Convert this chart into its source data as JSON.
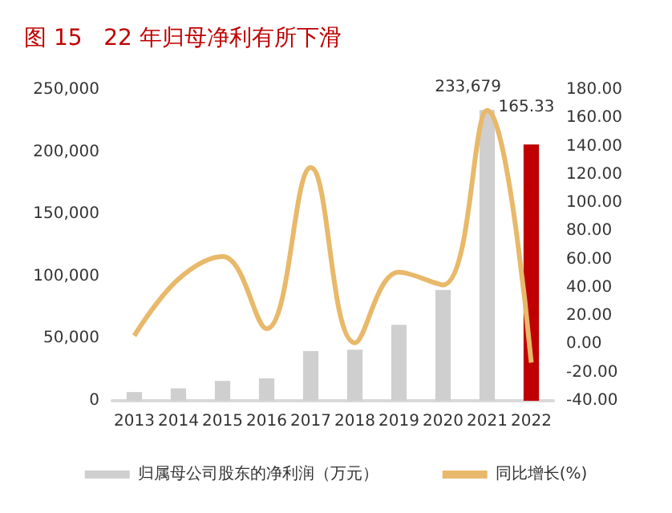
{
  "chart_data": {
    "type": "bar",
    "title": "图 15   22 年归母净利有所下滑",
    "categories": [
      "2013",
      "2014",
      "2015",
      "2016",
      "2017",
      "2018",
      "2019",
      "2020",
      "2021",
      "2022"
    ],
    "series": [
      {
        "name": "归属母公司股东的净利润（万元）",
        "color": "#d0cfcf",
        "colors": [
          "#d0cfcf",
          "#d0cfcf",
          "#d0cfcf",
          "#d0cfcf",
          "#d0cfcf",
          "#d0cfcf",
          "#d0cfcf",
          "#d0cfcf",
          "#d0cfcf",
          "#c00000"
        ],
        "values": [
          7000,
          10000,
          16000,
          18000,
          40000,
          41000,
          61000,
          89000,
          233679,
          206000
        ],
        "value_labels": [
          null,
          null,
          null,
          null,
          null,
          null,
          null,
          null,
          "233,679",
          null
        ]
      },
      {
        "name": "同比增长(%)",
        "type": "line",
        "axis": "y2",
        "color": "#e8b96a",
        "values": [
          6,
          46,
          62,
          11,
          125,
          1,
          51,
          42,
          165.33,
          -13
        ],
        "value_labels": [
          null,
          null,
          null,
          null,
          null,
          null,
          null,
          null,
          "165.33",
          null
        ]
      }
    ],
    "ylim": [
      0,
      250000
    ],
    "yticks": [
      {
        "value": 0,
        "label": "0"
      },
      {
        "value": 50000,
        "label": "50,000"
      },
      {
        "value": 100000,
        "label": "100,000"
      },
      {
        "value": 150000,
        "label": "150,000"
      },
      {
        "value": 200000,
        "label": "200,000"
      },
      {
        "value": 250000,
        "label": "250,000"
      }
    ],
    "y2lim": [
      -40,
      180
    ],
    "y2ticks": [
      {
        "value": -40,
        "label": "-40.00"
      },
      {
        "value": -20,
        "label": "-20.00"
      },
      {
        "value": 0,
        "label": "0.00"
      },
      {
        "value": 20,
        "label": "20.00"
      },
      {
        "value": 40,
        "label": "40.00"
      },
      {
        "value": 60,
        "label": "60.00"
      },
      {
        "value": 80,
        "label": "80.00"
      },
      {
        "value": 100,
        "label": "100.00"
      },
      {
        "value": 120,
        "label": "120.00"
      },
      {
        "value": 140,
        "label": "140.00"
      },
      {
        "value": 160,
        "label": "160.00"
      },
      {
        "value": 180,
        "label": "180.00"
      }
    ],
    "grid": false,
    "legend": "bottom",
    "marker": "none"
  }
}
